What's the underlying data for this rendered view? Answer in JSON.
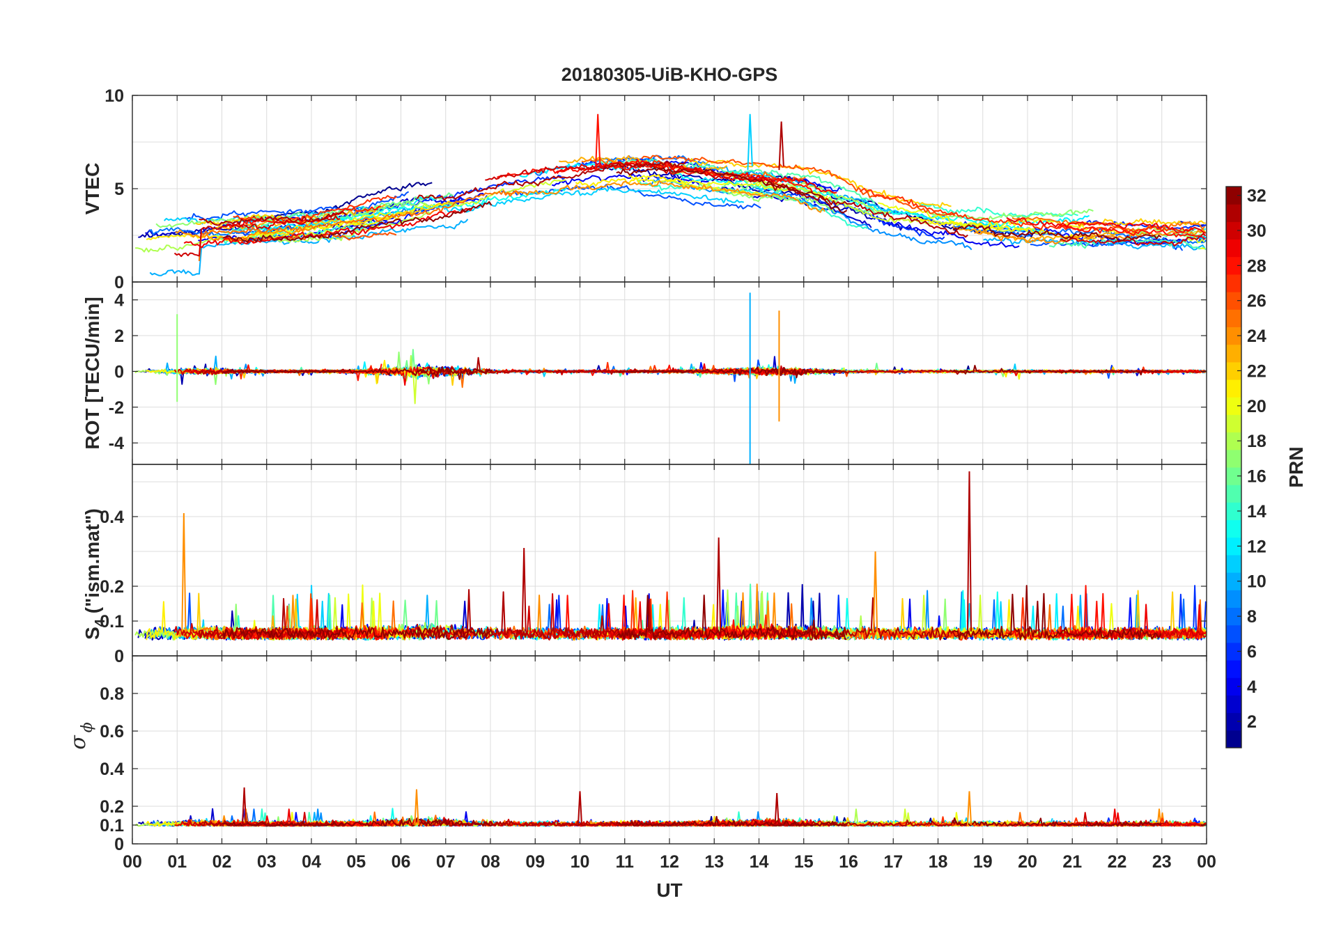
{
  "chart_data": {
    "type": "line",
    "title": "20180305-UiB-KHO-GPS",
    "xlabel": "UT",
    "x_tick_labels": [
      "00",
      "01",
      "02",
      "03",
      "04",
      "05",
      "06",
      "07",
      "08",
      "09",
      "10",
      "11",
      "12",
      "13",
      "14",
      "15",
      "16",
      "17",
      "18",
      "19",
      "20",
      "21",
      "22",
      "23",
      "00"
    ],
    "xlim_hours": [
      0,
      24
    ],
    "colorbar": {
      "label": "PRN",
      "range": [
        1,
        32
      ],
      "tick_labels": [
        "2",
        "4",
        "6",
        "8",
        "10",
        "12",
        "14",
        "16",
        "18",
        "20",
        "22",
        "24",
        "26",
        "28",
        "30",
        "32"
      ],
      "colormap": "jet"
    },
    "panels": [
      {
        "name": "vtec",
        "ylabel": "VTEC",
        "ylim": [
          0,
          10
        ],
        "yticks": [
          0,
          5,
          10
        ],
        "ytick_labels": [
          "0",
          "5",
          "10"
        ],
        "kind": "vtec",
        "annotations": {
          "peaks": [
            {
              "hour": 13.8,
              "value": 9.0
            },
            {
              "hour": 14.5,
              "value": 8.6
            },
            {
              "hour": 10.4,
              "value": 9.0
            }
          ]
        }
      },
      {
        "name": "rot",
        "ylabel": "ROT [TECU/min]",
        "ylim": [
          -5.2,
          5.0
        ],
        "yticks": [
          -4,
          -2,
          0,
          2,
          4
        ],
        "ytick_labels": [
          "-4",
          "-2",
          "0",
          "2",
          "4"
        ],
        "kind": "rot",
        "annotations": {
          "spikes": [
            {
              "hour": 13.8,
              "max": 4.4,
              "min": -5.2
            },
            {
              "hour": 1.0,
              "max": 3.2,
              "min": -1.7
            },
            {
              "hour": 14.45,
              "max": 3.4,
              "min": -2.8
            }
          ]
        }
      },
      {
        "name": "s4",
        "ylabel_main": "S",
        "ylabel_sub": "4",
        "ylabel_rest": " (\"ism.mat\")",
        "ylim": [
          0,
          0.55
        ],
        "yticks": [
          0,
          0.1,
          0.2,
          0.4
        ],
        "ytick_labels": [
          "0",
          "0.1",
          "0.2",
          "0.4"
        ],
        "kind": "s4",
        "annotations": {
          "spikes": [
            {
              "hour": 18.7,
              "value": 0.53
            },
            {
              "hour": 1.15,
              "value": 0.41
            },
            {
              "hour": 13.1,
              "value": 0.34
            },
            {
              "hour": 16.6,
              "value": 0.3
            },
            {
              "hour": 8.75,
              "value": 0.31
            }
          ]
        }
      },
      {
        "name": "sigma-phi",
        "ylabel_symbol": "σ",
        "ylabel_sub": "ϕ",
        "ylim": [
          0,
          1.0
        ],
        "yticks": [
          0,
          0.1,
          0.2,
          0.4,
          0.6,
          0.8
        ],
        "ytick_labels": [
          "0",
          "0.1",
          "0.2",
          "0.4",
          "0.6",
          "0.8"
        ],
        "kind": "sigma",
        "annotations": {
          "spikes": [
            {
              "hour": 2.5,
              "value": 0.3
            },
            {
              "hour": 6.35,
              "value": 0.29
            },
            {
              "hour": 10.0,
              "value": 0.28
            },
            {
              "hour": 18.7,
              "value": 0.28
            },
            {
              "hour": 14.4,
              "value": 0.27
            }
          ]
        }
      }
    ]
  }
}
